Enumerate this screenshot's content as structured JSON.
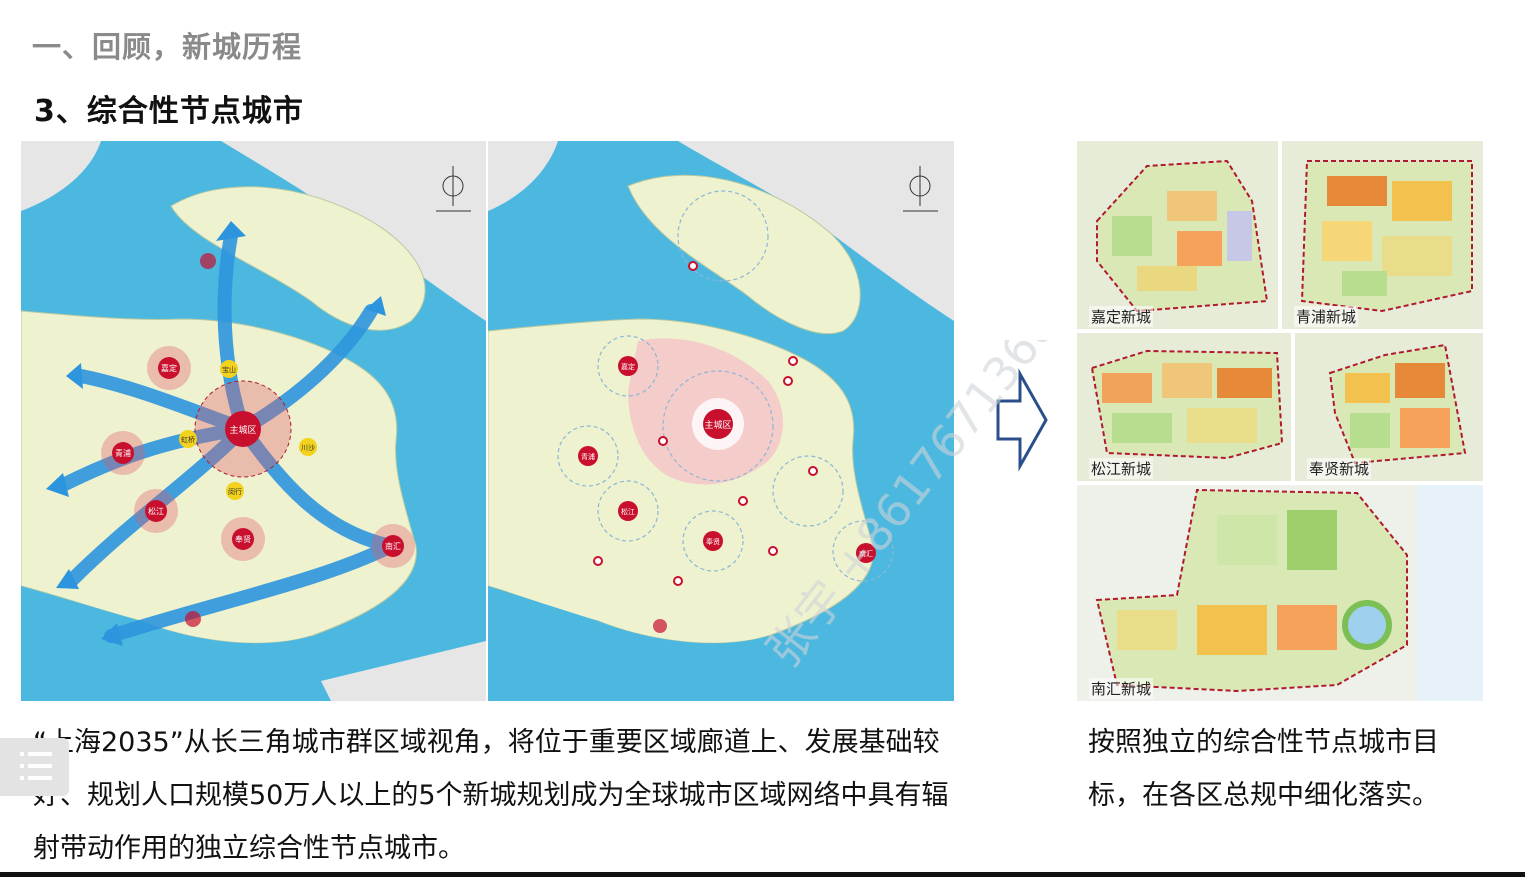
{
  "header": {
    "section_title": "一、回顾，新城历程",
    "sub_title": "3、综合性节点城市"
  },
  "left_map": {
    "labels": {
      "main": "主城区",
      "jiading": "嘉定",
      "qingpu": "青浦",
      "songjiang": "松江",
      "fengxian": "奉贤",
      "nanhui": "南汇",
      "baoshan": "宝山",
      "hongqiao": "虹桥",
      "chuansha": "川沙",
      "minhang": "闵行"
    }
  },
  "right_map": {
    "labels": {
      "main": "主城区",
      "jiading": "嘉定",
      "qingpu": "青浦",
      "songjiang": "松江",
      "fengxian": "奉贤",
      "nanhui": "南汇"
    }
  },
  "plans": [
    {
      "name": "嘉定新城"
    },
    {
      "name": "青浦新城"
    },
    {
      "name": "松江新城"
    },
    {
      "name": "奉贤新城"
    },
    {
      "name": "南汇新城"
    }
  ],
  "body_left": "“上海2035”从长三角城市群区域视角，将位于重要区域廊道上、发展基础较好、规划人口规模50万人以上的5个新城规划成为全球城市区域网络中具有辐射带动作用的独立综合性节点城市。",
  "body_right": "按照独立的综合性节点城市目标，在各区总规中细化落实。",
  "watermark": "张宇 +86176713686",
  "colors": {
    "sea": "#4cb8e0",
    "land": "#eef2cf",
    "corridor": "#2d95dd",
    "node": "#c8102e",
    "boundary": "#b0192e"
  }
}
